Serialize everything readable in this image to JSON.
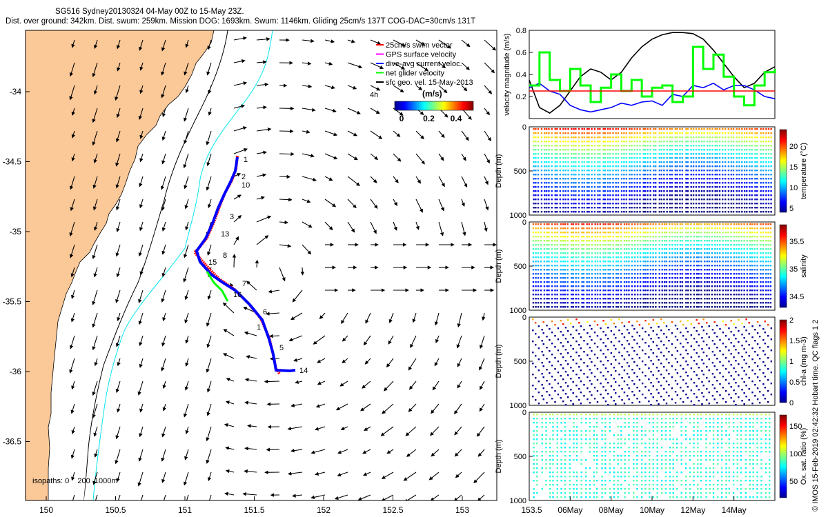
{
  "header": {
    "line1": "SG516 Sydney20130324 04-May 00Z to 15-May 23Z.",
    "line2": "Dist. over ground: 342km. Dist. swum: 259km. Mission DOG: 1693km. Swum: 1146km. Gliding 25cm/s 137T COG-DAC=30cm/s 131T"
  },
  "map": {
    "x_ticks": [
      "150",
      "150.5",
      "151",
      "151.5",
      "152",
      "152.5",
      "153",
      "153.5"
    ],
    "y_ticks": [
      "-34",
      "-34.5",
      "-35",
      "-35.5",
      "-36",
      "-36.5"
    ],
    "legend": [
      {
        "label": "25cm/s swim vector",
        "color": "#ff0000"
      },
      {
        "label": "GPS surface velocity",
        "color": "#ff00ff"
      },
      {
        "label": "dive-avg current veloc.",
        "color": "#0000ff"
      },
      {
        "label": "net glider velocity",
        "color": "#00ff00"
      },
      {
        "label": "sfc geo. vel. 15-May-2013",
        "color": "#000000"
      }
    ],
    "scale_label": "4h",
    "colorbar_title": "(m/s)",
    "colorbar_ticks": [
      "0",
      "0.2",
      "0.4"
    ],
    "isopaths_label": "isopaths: 0    200  1000m",
    "day_labels": [
      "1",
      "2",
      "10",
      "3",
      "13",
      "8",
      "15",
      "7",
      "16",
      "6",
      "1",
      "5",
      "14"
    ],
    "colors": {
      "land": "#fbc898",
      "coast_contour": "#000000",
      "isobath_200": "#00e5ee",
      "track": "#0000ff",
      "swim": "#ff0000"
    }
  },
  "time_axis": [
    "06May",
    "08May",
    "10May",
    "12May",
    "14May"
  ],
  "panels": {
    "velocity": {
      "ylabel": "velocity magnitude (m/s)",
      "ticks": [
        "0.8",
        "0.6",
        "0.4",
        "0.2"
      ]
    },
    "temperature": {
      "ylabel": "Depth (m)",
      "cbar_label": "temperature (°C)",
      "depth_ticks": [
        "0",
        "500",
        "1000"
      ],
      "cbar_ticks": [
        "20",
        "15",
        "10",
        "5"
      ]
    },
    "salinity": {
      "ylabel": "Depth (m)",
      "cbar_label": "salinity",
      "depth_ticks": [
        "0",
        "500",
        "1000"
      ],
      "cbar_ticks": [
        "35.5",
        "35",
        "34.5"
      ]
    },
    "chla": {
      "ylabel": "Depth (m)",
      "cbar_label": "chl-a (mg m-3)",
      "depth_ticks": [
        "0",
        "500",
        "1000"
      ],
      "cbar_ticks": [
        "2",
        "1.5",
        "1",
        "0.5",
        "0"
      ]
    },
    "oxygen": {
      "ylabel": "Depth (m)",
      "cbar_label": "Ox. sat. ratio (%)",
      "depth_ticks": [
        "0",
        "500",
        "1000"
      ],
      "cbar_ticks": [
        "150",
        "100",
        "50"
      ]
    }
  },
  "credit": "© IMOS 15-Feb-2019 02:42:32 Hobart time. QC flags 1  2",
  "chart_data": [
    {
      "type": "line",
      "title": "",
      "ylabel": "velocity magnitude (m/s)",
      "ylim": [
        0,
        0.8
      ],
      "x_range": [
        "04-May",
        "16-May"
      ],
      "series": [
        {
          "color": "#000000",
          "x_day": [
            4,
            4.5,
            5,
            5.5,
            6,
            6.5,
            7,
            7.5,
            8,
            8.5,
            9,
            9.5,
            10,
            10.5,
            11,
            11.5,
            12,
            12.5,
            13,
            13.5,
            14,
            14.5,
            15,
            15.5,
            16
          ],
          "values": [
            0.35,
            0.1,
            0.05,
            0.12,
            0.25,
            0.38,
            0.45,
            0.42,
            0.35,
            0.42,
            0.55,
            0.65,
            0.72,
            0.76,
            0.78,
            0.78,
            0.77,
            0.72,
            0.62,
            0.5,
            0.38,
            0.28,
            0.32,
            0.42,
            0.47
          ]
        },
        {
          "color": "#0000ff",
          "x_day": [
            4,
            4.5,
            5,
            5.5,
            6,
            6.5,
            7,
            7.5,
            8,
            8.5,
            9,
            9.5,
            10,
            10.5,
            11,
            11.5,
            12,
            12.5,
            13,
            13.5,
            14,
            14.5,
            15,
            15.5,
            16
          ],
          "values": [
            0.28,
            0.32,
            0.25,
            0.22,
            0.12,
            0.08,
            0.06,
            0.08,
            0.1,
            0.14,
            0.12,
            0.15,
            0.16,
            0.12,
            0.22,
            0.2,
            0.3,
            0.28,
            0.32,
            0.26,
            0.3,
            0.3,
            0.26,
            0.2,
            0.18
          ]
        },
        {
          "color": "#00ff00",
          "x_day": [
            4,
            4.5,
            5,
            5.5,
            6,
            6.5,
            7,
            7.5,
            8,
            8.5,
            9,
            9.5,
            10,
            10.5,
            11,
            11.5,
            12,
            12.5,
            13,
            13.5,
            14,
            14.5,
            15,
            15.5,
            16
          ],
          "values": [
            0.3,
            0.6,
            0.35,
            0.25,
            0.45,
            0.3,
            0.15,
            0.28,
            0.4,
            0.25,
            0.35,
            0.2,
            0.28,
            0.3,
            0.15,
            0.2,
            0.65,
            0.45,
            0.58,
            0.38,
            0.2,
            0.12,
            0.3,
            0.42,
            0.45
          ]
        },
        {
          "color": "#ff0000",
          "x_day": [
            4,
            16
          ],
          "values": [
            0.25,
            0.25
          ]
        }
      ]
    },
    {
      "type": "scatter",
      "ylabel": "Depth (m)",
      "cbar_label": "temperature (°C)",
      "ylim": [
        1000,
        0
      ],
      "clim": [
        4,
        24
      ]
    },
    {
      "type": "scatter",
      "ylabel": "Depth (m)",
      "cbar_label": "salinity",
      "ylim": [
        1000,
        0
      ],
      "clim": [
        34.3,
        35.8
      ]
    },
    {
      "type": "scatter",
      "ylabel": "Depth (m)",
      "cbar_label": "chl-a (mg m-3)",
      "ylim": [
        1000,
        0
      ],
      "clim": [
        0,
        2
      ]
    },
    {
      "type": "scatter",
      "ylabel": "Depth (m)",
      "cbar_label": "Ox. sat. ratio (%)",
      "ylim": [
        1000,
        0
      ],
      "clim": [
        20,
        170
      ]
    }
  ]
}
